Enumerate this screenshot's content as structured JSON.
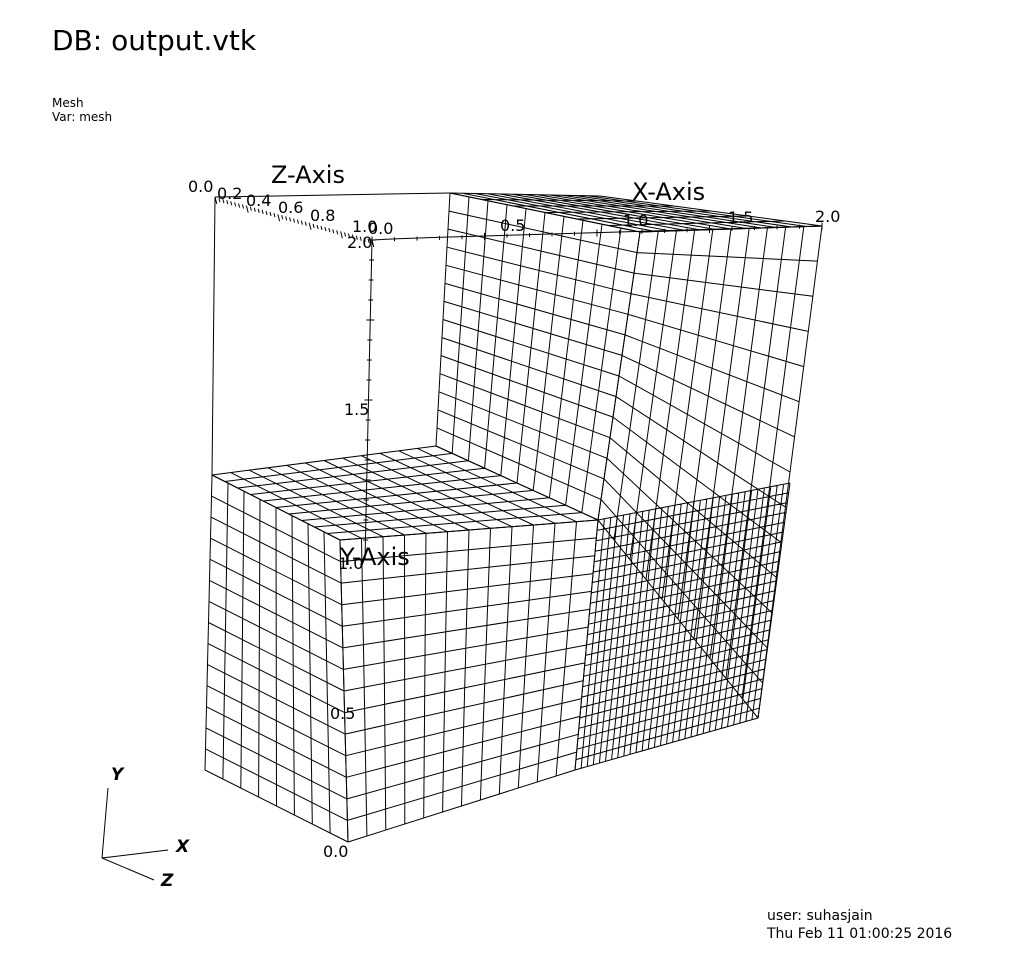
{
  "header": {
    "db_title": "DB: output.vtk",
    "plot_type": "Mesh",
    "plot_var": "Var: mesh"
  },
  "axes": {
    "z_title": "Z-Axis",
    "x_title": "X-Axis",
    "y_title": "Y-Axis",
    "z_ticks": [
      "0.0",
      "0.2",
      "0.4",
      "0.6",
      "0.8",
      "1.0"
    ],
    "x_ticks": [
      "0.0",
      "0.5",
      "1.0",
      "1.5",
      "2.0"
    ],
    "y_ticks": [
      "0.0",
      "0.5",
      "1.0",
      "1.5",
      "2.0"
    ]
  },
  "triad": {
    "x": "X",
    "y": "Y",
    "z": "Z"
  },
  "footer": {
    "user": "user: suhasjain",
    "date": "Thu Feb 11 01:00:25 2016"
  },
  "colors": {
    "line": "#000000",
    "background": "#ffffff"
  }
}
